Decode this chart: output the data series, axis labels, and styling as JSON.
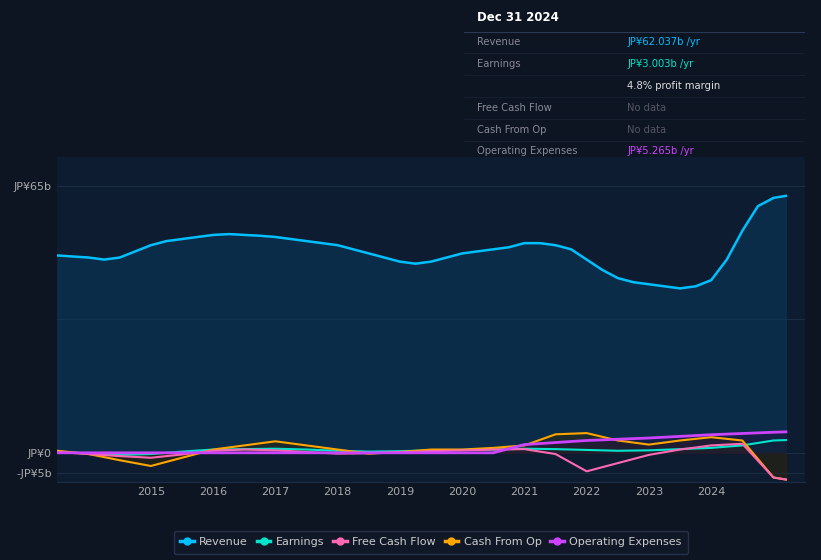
{
  "bg_color": "#0d1422",
  "plot_bg_color": "#0d1c30",
  "grid_color": "#1a2e48",
  "title_text": "Dec 31 2024",
  "info_box_rows": [
    {
      "label": "Revenue",
      "value": "JP¥62.037b /yr",
      "value_color": "#00bfff",
      "label_color": "#888899"
    },
    {
      "label": "Earnings",
      "value": "JP¥3.003b /yr",
      "value_color": "#00e5cc",
      "label_color": "#888899"
    },
    {
      "label": "",
      "value": "4.8% profit margin",
      "value_color": "#dddddd",
      "label_color": "#888899"
    },
    {
      "label": "Free Cash Flow",
      "value": "No data",
      "value_color": "#555566",
      "label_color": "#888899"
    },
    {
      "label": "Cash From Op",
      "value": "No data",
      "value_color": "#555566",
      "label_color": "#888899"
    },
    {
      "label": "Operating Expenses",
      "value": "JP¥5.265b /yr",
      "value_color": "#cc44ff",
      "label_color": "#888899"
    }
  ],
  "ylim": [
    -7,
    72
  ],
  "ytick_positions": [
    65,
    32.5,
    0,
    -5
  ],
  "ytick_labels": [
    "JP¥65b",
    "",
    "JP¥0",
    "-JP¥5b"
  ],
  "xlim": [
    2013.5,
    2025.5
  ],
  "xtick_positions": [
    2015,
    2016,
    2017,
    2018,
    2019,
    2020,
    2021,
    2022,
    2023,
    2024
  ],
  "legend": [
    {
      "label": "Revenue",
      "color": "#00bfff"
    },
    {
      "label": "Earnings",
      "color": "#00e5cc"
    },
    {
      "label": "Free Cash Flow",
      "color": "#ff69b4"
    },
    {
      "label": "Cash From Op",
      "color": "#ffa500"
    },
    {
      "label": "Operating Expenses",
      "color": "#cc44ff"
    }
  ],
  "revenue": {
    "color": "#00bfff",
    "fill_color": "#0a3a5c",
    "x": [
      2013.5,
      2014.0,
      2014.25,
      2014.5,
      2014.75,
      2015.0,
      2015.25,
      2015.5,
      2015.75,
      2016.0,
      2016.25,
      2016.5,
      2016.75,
      2017.0,
      2017.25,
      2017.5,
      2017.75,
      2018.0,
      2018.25,
      2018.5,
      2018.75,
      2019.0,
      2019.25,
      2019.5,
      2019.75,
      2020.0,
      2020.25,
      2020.5,
      2020.75,
      2021.0,
      2021.25,
      2021.5,
      2021.75,
      2022.0,
      2022.25,
      2022.5,
      2022.75,
      2023.0,
      2023.25,
      2023.5,
      2023.75,
      2024.0,
      2024.25,
      2024.5,
      2024.75,
      2025.0,
      2025.2
    ],
    "y": [
      48,
      47.5,
      47.0,
      47.5,
      49.0,
      50.5,
      51.5,
      52.0,
      52.5,
      53.0,
      53.2,
      53.0,
      52.8,
      52.5,
      52.0,
      51.5,
      51.0,
      50.5,
      49.5,
      48.5,
      47.5,
      46.5,
      46.0,
      46.5,
      47.5,
      48.5,
      49.0,
      49.5,
      50.0,
      51.0,
      51.0,
      50.5,
      49.5,
      47.0,
      44.5,
      42.5,
      41.5,
      41.0,
      40.5,
      40.0,
      40.5,
      42.0,
      47.0,
      54.0,
      60.0,
      62.0,
      62.5
    ]
  },
  "earnings": {
    "color": "#00e5cc",
    "fill_color": "#003a30",
    "x": [
      2013.5,
      2014.0,
      2014.5,
      2015.0,
      2015.5,
      2016.0,
      2016.5,
      2017.0,
      2017.5,
      2018.0,
      2018.5,
      2019.0,
      2019.5,
      2020.0,
      2020.5,
      2021.0,
      2021.5,
      2022.0,
      2022.5,
      2023.0,
      2023.5,
      2024.0,
      2024.5,
      2025.0,
      2025.2
    ],
    "y": [
      0.3,
      -0.2,
      -0.5,
      -0.3,
      0.3,
      0.8,
      0.9,
      1.0,
      0.8,
      0.5,
      0.3,
      0.4,
      0.6,
      0.7,
      0.8,
      1.0,
      0.9,
      0.7,
      0.5,
      0.6,
      0.9,
      1.2,
      1.8,
      3.0,
      3.1
    ]
  },
  "free_cash_flow": {
    "color": "#ff69b4",
    "x": [
      2013.5,
      2014.0,
      2014.5,
      2015.0,
      2015.5,
      2016.0,
      2016.5,
      2017.0,
      2017.5,
      2018.0,
      2018.5,
      2019.0,
      2019.5,
      2020.0,
      2020.5,
      2021.0,
      2021.5,
      2022.0,
      2022.5,
      2023.0,
      2023.5,
      2024.0,
      2024.5,
      2025.0,
      2025.2
    ],
    "y": [
      0.2,
      -0.3,
      -0.8,
      -1.2,
      -0.4,
      0.5,
      0.8,
      0.6,
      0.2,
      -0.2,
      -0.1,
      0.1,
      0.4,
      0.6,
      0.8,
      0.9,
      -0.3,
      -4.5,
      -2.5,
      -0.5,
      0.8,
      1.8,
      2.2,
      -6.0,
      -6.5
    ]
  },
  "cash_from_op": {
    "color": "#ffa500",
    "fill_color": "#3a2800",
    "x": [
      2013.5,
      2014.0,
      2014.5,
      2015.0,
      2015.5,
      2016.0,
      2016.5,
      2017.0,
      2017.5,
      2018.0,
      2018.5,
      2019.0,
      2019.5,
      2020.0,
      2020.5,
      2021.0,
      2021.5,
      2022.0,
      2022.5,
      2023.0,
      2023.5,
      2024.0,
      2024.5,
      2025.0,
      2025.2
    ],
    "y": [
      0.5,
      -0.3,
      -1.8,
      -3.2,
      -1.2,
      0.8,
      1.8,
      2.8,
      1.8,
      0.8,
      -0.2,
      0.2,
      0.8,
      0.8,
      1.2,
      1.8,
      4.5,
      4.8,
      3.0,
      2.0,
      3.0,
      3.8,
      3.0,
      -6.0,
      -6.5
    ]
  },
  "operating_expenses": {
    "color": "#cc44ff",
    "fill_color": "#2a0044",
    "x": [
      2013.5,
      2014.0,
      2014.5,
      2015.0,
      2015.5,
      2016.0,
      2016.5,
      2017.0,
      2017.5,
      2018.0,
      2018.5,
      2019.0,
      2019.5,
      2020.0,
      2020.5,
      2021.0,
      2021.5,
      2022.0,
      2022.5,
      2023.0,
      2023.5,
      2024.0,
      2024.5,
      2025.0,
      2025.2
    ],
    "y": [
      0,
      0,
      0,
      0,
      0,
      0,
      0,
      0,
      0,
      0,
      0,
      0,
      0,
      0,
      0,
      2.0,
      2.5,
      3.0,
      3.3,
      3.6,
      4.0,
      4.4,
      4.7,
      5.0,
      5.1
    ]
  }
}
